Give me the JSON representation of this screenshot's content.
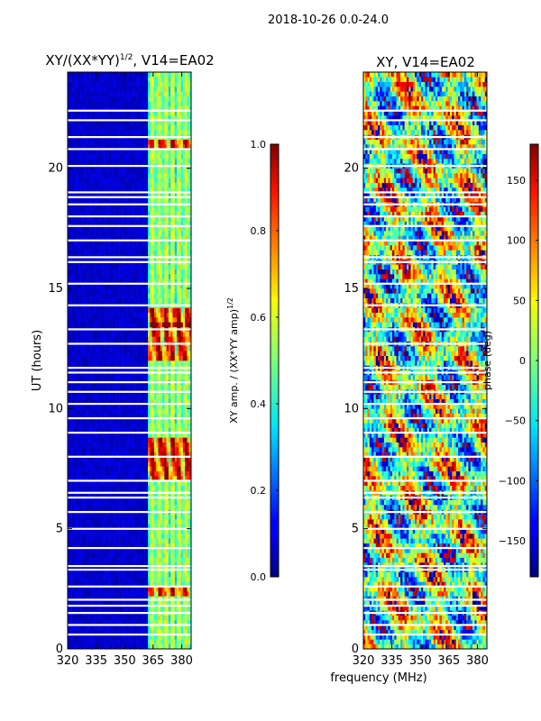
{
  "suptitle": "2018-10-26 0.0-24.0",
  "xlabel_common": "frequency (MHz)",
  "colors": {
    "frame": "#000000",
    "bg": "#ffffff",
    "gap": "#ffffff"
  },
  "chart_data": [
    {
      "type": "heatmap",
      "title": "XY/(XX*YY)",
      "title_sup": "1/2",
      "title_suffix": ", V14=EA02",
      "xlabel": "",
      "ylabel": "UT (hours)",
      "xlim": [
        320,
        385
      ],
      "ylim": [
        0,
        24
      ],
      "xticks": [
        320,
        335,
        350,
        365,
        380
      ],
      "yticks": [
        0,
        5,
        10,
        15,
        20
      ],
      "colorbar": {
        "label": "XY amp. / (XX*YY amp)",
        "label_sup": "1/2",
        "range": [
          0.0,
          1.0
        ],
        "ticks": [
          "0.0",
          "0.2",
          "0.4",
          "0.6",
          "0.8",
          "1.0"
        ],
        "cmap": "jet"
      },
      "description_value": "amplitude mostly low (~0.05) below 362 MHz; 362-382 MHz band shows structured values 0.3-0.9 with strongest (>0.85) near 2.4 h, 7.5-8.5 h, 12.5-14 h, 21 h"
    },
    {
      "type": "heatmap",
      "title": "XY, V14=EA02",
      "xlabel": "frequency (MHz)",
      "ylabel": "",
      "xlim": [
        320,
        385
      ],
      "ylim": [
        0,
        24
      ],
      "xticks": [
        320,
        335,
        350,
        365,
        380
      ],
      "yticks": [
        0,
        5,
        10,
        15,
        20
      ],
      "colorbar": {
        "label": "phase (deg)",
        "range": [
          -180,
          180
        ],
        "ticks": [
          "-150",
          "-100",
          "-50",
          "0",
          "50",
          "100",
          "150"
        ],
        "cmap": "jet"
      },
      "description_value": "phase spans full -180 to 180 deg range across all frequencies and times"
    }
  ],
  "gap_rows_hours": [
    0.6,
    1.0,
    1.5,
    1.8,
    2.05,
    2.6,
    3.3,
    3.45,
    4.2,
    5.0,
    5.7,
    6.3,
    6.5,
    7.0,
    8.0,
    9.0,
    9.6,
    10.2,
    10.7,
    11.1,
    11.5,
    11.7,
    12.7,
    13.3,
    14.3,
    15.2,
    16.1,
    16.3,
    17.0,
    17.6,
    18.0,
    18.5,
    18.8,
    19.0,
    20.1,
    20.8,
    21.3,
    22.0,
    22.4
  ]
}
